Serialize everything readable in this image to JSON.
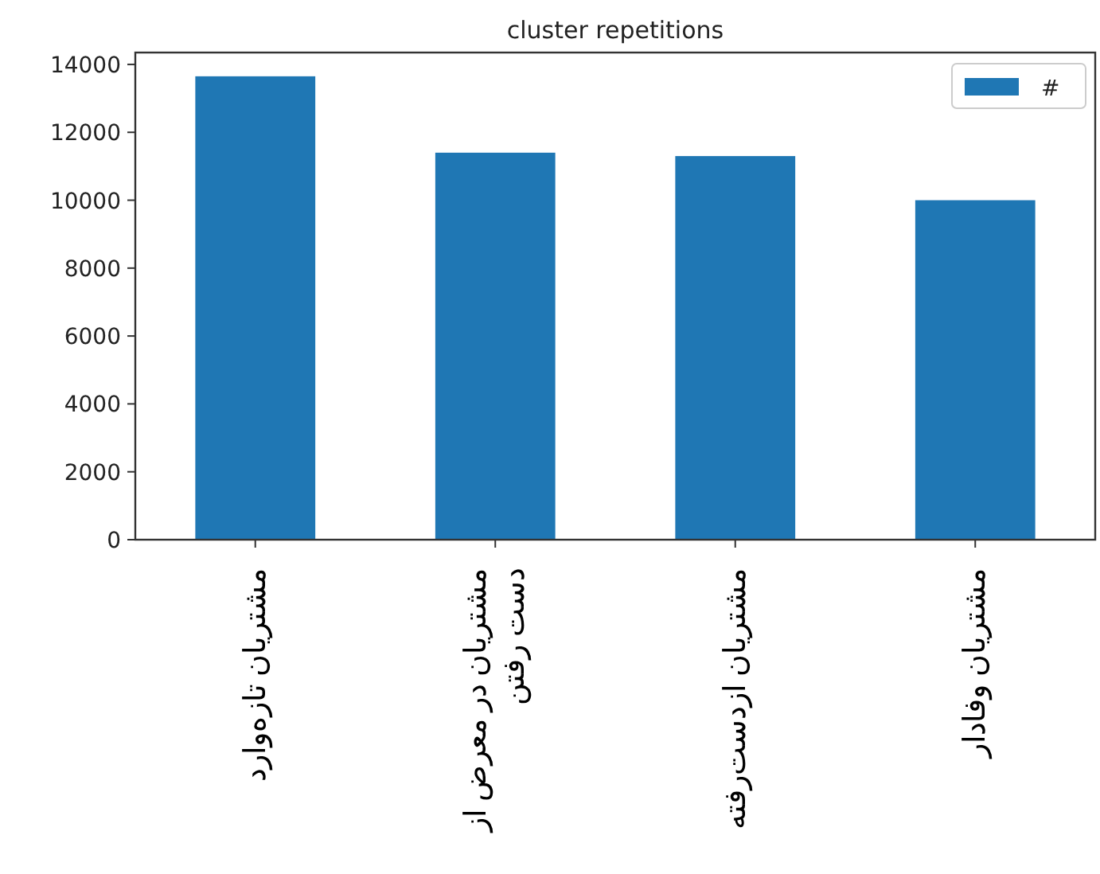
{
  "chart_data": {
    "type": "bar",
    "title": "cluster repetitions",
    "categories": [
      "مشتریان تازه‌وارد",
      "مشتریان در معرض از دست رفتن",
      "مشتریان ازدست‌رفته",
      "مشتریان وفادار"
    ],
    "series": [
      {
        "name": "#",
        "color": "#1f77b4",
        "values": [
          13650,
          11400,
          11300,
          10000
        ]
      }
    ],
    "ylim": [
      0,
      14350
    ],
    "yticks": [
      0,
      2000,
      4000,
      6000,
      8000,
      10000,
      12000,
      14000
    ],
    "legend": "top right",
    "grid": false
  }
}
